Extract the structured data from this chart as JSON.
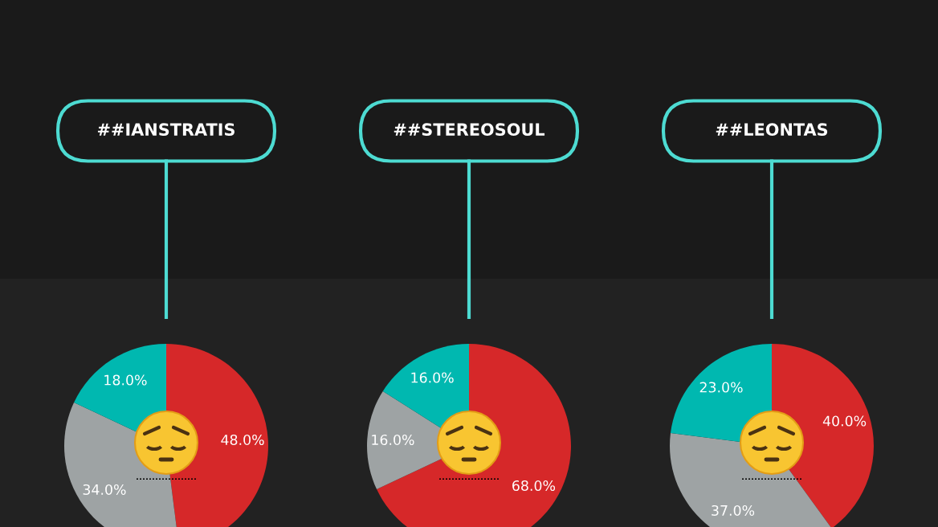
{
  "chart_data": [
    {
      "type": "pie",
      "title": "##IANSTRATIS",
      "categories": [
        null,
        null,
        null
      ],
      "values": [
        48,
        34,
        18
      ],
      "colors": [
        "#d62829",
        "#9ea3a4",
        "#00b8b0"
      ],
      "value_labels": [
        "48.0%",
        "34.0%",
        "18.0%"
      ]
    },
    {
      "type": "pie",
      "title": "##STEREOSOUL",
      "categories": [
        null,
        null,
        null
      ],
      "values": [
        68,
        16,
        16
      ],
      "colors": [
        "#d62829",
        "#9ea3a4",
        "#00b8b0"
      ],
      "value_labels": [
        "68.0%",
        "16.0%",
        "16.0%"
      ]
    },
    {
      "type": "pie",
      "title": "##LEONTAS",
      "categories": [
        null,
        null,
        null
      ],
      "values": [
        40,
        37,
        23
      ],
      "colors": [
        "#d62829",
        "#9ea3a4",
        "#00b8b0"
      ],
      "value_labels": [
        "40.0%",
        "37.0%",
        "23.0%"
      ]
    }
  ]
}
